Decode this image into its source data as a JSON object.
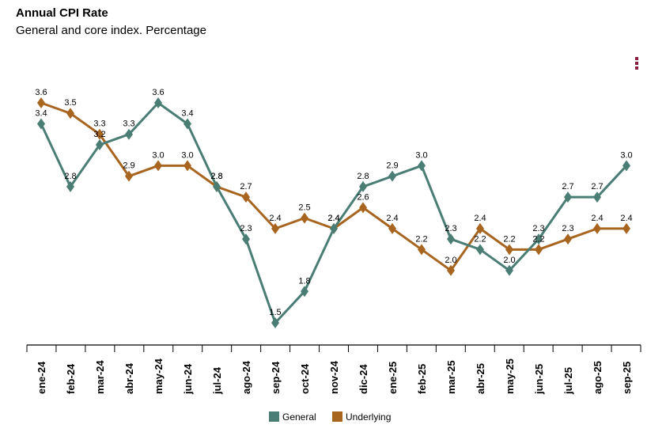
{
  "chart_data": {
    "type": "line",
    "title": "Annual CPI Rate",
    "subtitle": "General and core index. Percentage",
    "categories": [
      "ene-24",
      "feb-24",
      "mar-24",
      "abr-24",
      "may-24",
      "jun-24",
      "jul-24",
      "ago-24",
      "sep-24",
      "oct-24",
      "nov-24",
      "dic-24",
      "ene-25",
      "feb-25",
      "mar-25",
      "abr-25",
      "may-25",
      "jun-25",
      "jul-25",
      "ago-25",
      "sep-25"
    ],
    "series": [
      {
        "name": "General",
        "color": "#4a7d74",
        "values": [
          3.4,
          2.8,
          3.2,
          3.3,
          3.6,
          3.4,
          2.8,
          2.3,
          1.5,
          1.8,
          2.4,
          2.8,
          2.9,
          3.0,
          2.3,
          2.2,
          2.0,
          2.3,
          2.7,
          2.7,
          3.0
        ]
      },
      {
        "name": "Underlying",
        "color": "#a86520",
        "values": [
          3.6,
          3.5,
          3.3,
          2.9,
          3.0,
          3.0,
          2.8,
          2.7,
          2.4,
          2.5,
          2.4,
          2.6,
          2.4,
          2.2,
          2.0,
          2.4,
          2.2,
          2.2,
          2.3,
          2.4,
          2.4
        ]
      }
    ],
    "grid": false,
    "legend_position": "bottom"
  },
  "menu_icon": "more-vertical-icon"
}
